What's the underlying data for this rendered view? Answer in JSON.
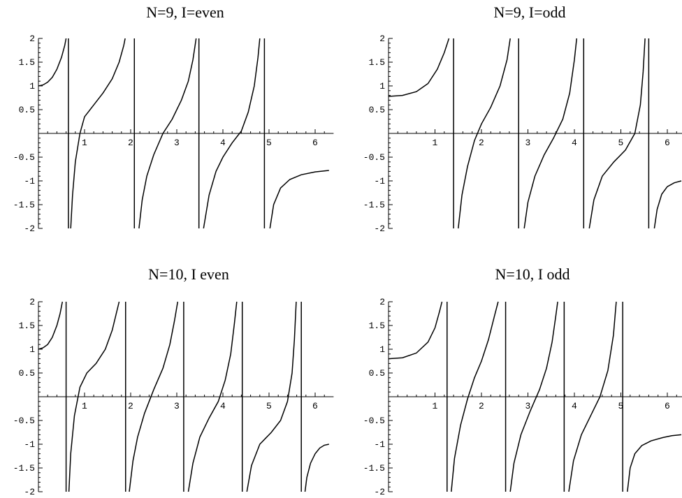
{
  "chart_data": [
    {
      "type": "line",
      "title": "N=9, I=even",
      "xlim": [
        0,
        6.4
      ],
      "ylim": [
        -2,
        2
      ],
      "x_ticks": [
        "1",
        "2",
        "3",
        "4",
        "5",
        "6"
      ],
      "x_tick_values": [
        1,
        2,
        3,
        4,
        5,
        6
      ],
      "y_ticks": [
        "2",
        "1.5",
        "1",
        "0.5",
        "-0.5",
        "-1",
        "-1.5",
        "-2"
      ],
      "y_tick_values": [
        2,
        1.5,
        1,
        0.5,
        -0.5,
        -1,
        -1.5,
        -2
      ],
      "grid": false,
      "asymptotes": [
        0.65,
        2.08,
        3.48,
        4.9
      ],
      "series": [
        {
          "x": [
            0,
            0.1,
            0.2,
            0.3,
            0.4,
            0.5,
            0.57,
            0.6
          ],
          "y": [
            1.0,
            1.02,
            1.08,
            1.18,
            1.35,
            1.6,
            1.85,
            2.0
          ]
        },
        {
          "x": [
            0.7,
            0.74,
            0.8,
            0.9,
            1.0,
            1.2,
            1.4,
            1.6,
            1.75,
            1.85,
            1.88
          ],
          "y": [
            -2.0,
            -1.3,
            -0.6,
            0.0,
            0.35,
            0.6,
            0.85,
            1.15,
            1.5,
            1.85,
            2.0
          ]
        },
        {
          "x": [
            2.18,
            2.25,
            2.35,
            2.5,
            2.7,
            2.9,
            3.1,
            3.25,
            3.35,
            3.42
          ],
          "y": [
            -2.0,
            -1.4,
            -0.9,
            -0.45,
            0.0,
            0.3,
            0.7,
            1.1,
            1.55,
            2.0
          ]
        },
        {
          "x": [
            3.58,
            3.7,
            3.85,
            4.0,
            4.2,
            4.4,
            4.55,
            4.68,
            4.76,
            4.8
          ],
          "y": [
            -2.0,
            -1.3,
            -0.8,
            -0.5,
            -0.2,
            0.05,
            0.45,
            1.0,
            1.6,
            2.0
          ]
        },
        {
          "x": [
            5.02,
            5.1,
            5.25,
            5.45,
            5.7,
            6.0,
            6.3
          ],
          "y": [
            -2.0,
            -1.5,
            -1.15,
            -0.97,
            -0.87,
            -0.81,
            -0.78
          ]
        }
      ]
    },
    {
      "type": "line",
      "title": "N=9, I=odd",
      "xlim": [
        0,
        6.4
      ],
      "ylim": [
        -2,
        2
      ],
      "x_ticks": [
        "1",
        "2",
        "3",
        "4",
        "5",
        "6"
      ],
      "x_tick_values": [
        1,
        2,
        3,
        4,
        5,
        6
      ],
      "y_ticks": [
        "2",
        "1.5",
        "1",
        "0.5",
        "-0.5",
        "-1",
        "-1.5",
        "-2"
      ],
      "y_tick_values": [
        2,
        1.5,
        1,
        0.5,
        -0.5,
        -1,
        -1.5,
        -2
      ],
      "grid": false,
      "asymptotes": [
        1.4,
        2.8,
        4.2,
        5.6
      ],
      "series": [
        {
          "x": [
            0,
            0.3,
            0.6,
            0.85,
            1.05,
            1.2,
            1.3
          ],
          "y": [
            0.78,
            0.8,
            0.88,
            1.05,
            1.35,
            1.7,
            2.0
          ]
        },
        {
          "x": [
            1.5,
            1.58,
            1.7,
            1.85,
            2.0,
            2.2,
            2.4,
            2.55,
            2.62
          ],
          "y": [
            -2.0,
            -1.3,
            -0.7,
            -0.15,
            0.2,
            0.55,
            1.0,
            1.55,
            2.0
          ]
        },
        {
          "x": [
            2.92,
            3.0,
            3.15,
            3.35,
            3.55,
            3.75,
            3.9,
            4.0,
            4.05
          ],
          "y": [
            -2.0,
            -1.45,
            -0.9,
            -0.45,
            -0.1,
            0.3,
            0.85,
            1.55,
            2.0
          ]
        },
        {
          "x": [
            4.32,
            4.42,
            4.6,
            4.85,
            5.1,
            5.3,
            5.42,
            5.48,
            5.52
          ],
          "y": [
            -2.0,
            -1.4,
            -0.9,
            -0.6,
            -0.35,
            0.0,
            0.6,
            1.3,
            2.0
          ]
        },
        {
          "x": [
            5.72,
            5.78,
            5.88,
            6.0,
            6.15,
            6.3
          ],
          "y": [
            -2.0,
            -1.6,
            -1.28,
            -1.12,
            -1.04,
            -1.0
          ]
        }
      ]
    },
    {
      "type": "line",
      "title": "N=10, I even",
      "xlim": [
        0,
        6.4
      ],
      "ylim": [
        -2,
        2
      ],
      "x_ticks": [
        "1",
        "2",
        "3",
        "4",
        "5",
        "6"
      ],
      "x_tick_values": [
        1,
        2,
        3,
        4,
        5,
        6
      ],
      "y_ticks": [
        "2",
        "1.5",
        "1",
        "0.5",
        "-0.5",
        "-1",
        "-1.5",
        "-2"
      ],
      "y_tick_values": [
        2,
        1.5,
        1,
        0.5,
        -0.5,
        -1,
        -1.5,
        -2
      ],
      "grid": false,
      "asymptotes": [
        0.6,
        1.89,
        3.15,
        4.42,
        5.7
      ],
      "series": [
        {
          "x": [
            0,
            0.1,
            0.2,
            0.3,
            0.4,
            0.47,
            0.52
          ],
          "y": [
            1.0,
            1.03,
            1.1,
            1.25,
            1.5,
            1.75,
            2.0
          ]
        },
        {
          "x": [
            0.66,
            0.7,
            0.78,
            0.9,
            1.05,
            1.25,
            1.45,
            1.6,
            1.7,
            1.75
          ],
          "y": [
            -2.0,
            -1.2,
            -0.4,
            0.2,
            0.5,
            0.7,
            1.0,
            1.4,
            1.8,
            2.0
          ]
        },
        {
          "x": [
            1.97,
            2.05,
            2.15,
            2.3,
            2.5,
            2.7,
            2.85,
            2.95,
            3.02
          ],
          "y": [
            -2.0,
            -1.35,
            -0.85,
            -0.35,
            0.15,
            0.6,
            1.1,
            1.6,
            2.0
          ]
        },
        {
          "x": [
            3.25,
            3.35,
            3.5,
            3.7,
            3.9,
            4.05,
            4.17,
            4.25,
            4.3
          ],
          "y": [
            -2.0,
            -1.4,
            -0.85,
            -0.45,
            -0.1,
            0.35,
            0.9,
            1.55,
            2.0
          ]
        },
        {
          "x": [
            4.52,
            4.62,
            4.8,
            5.05,
            5.25,
            5.4,
            5.5,
            5.55,
            5.59
          ],
          "y": [
            -2.0,
            -1.45,
            -1.0,
            -0.75,
            -0.5,
            -0.1,
            0.5,
            1.2,
            2.0
          ]
        },
        {
          "x": [
            5.78,
            5.82,
            5.9,
            6.0,
            6.1,
            6.2,
            6.3
          ],
          "y": [
            -2.0,
            -1.7,
            -1.4,
            -1.2,
            -1.08,
            -1.02,
            -1.0
          ]
        }
      ]
    },
    {
      "type": "line",
      "title": "N=10, I odd",
      "xlim": [
        0,
        6.4
      ],
      "ylim": [
        -2,
        2
      ],
      "x_ticks": [
        "1",
        "2",
        "3",
        "4",
        "5",
        "6"
      ],
      "x_tick_values": [
        1,
        2,
        3,
        4,
        5,
        6
      ],
      "y_ticks": [
        "2",
        "1.5",
        "1",
        "0.5",
        "-0.5",
        "-1",
        "-1.5",
        "-2"
      ],
      "y_tick_values": [
        2,
        1.5,
        1,
        0.5,
        -0.5,
        -1,
        -1.5,
        -2
      ],
      "grid": false,
      "asymptotes": [
        1.26,
        2.52,
        3.78,
        5.04
      ],
      "series": [
        {
          "x": [
            0,
            0.3,
            0.6,
            0.85,
            1.0,
            1.1,
            1.15
          ],
          "y": [
            0.8,
            0.82,
            0.92,
            1.15,
            1.45,
            1.8,
            2.0
          ]
        },
        {
          "x": [
            1.35,
            1.42,
            1.55,
            1.7,
            1.85,
            2.0,
            2.15,
            2.28,
            2.36
          ],
          "y": [
            -2.0,
            -1.3,
            -0.6,
            -0.05,
            0.4,
            0.75,
            1.2,
            1.7,
            2.0
          ]
        },
        {
          "x": [
            2.62,
            2.7,
            2.85,
            3.05,
            3.25,
            3.4,
            3.52,
            3.6,
            3.64
          ],
          "y": [
            -2.0,
            -1.4,
            -0.8,
            -0.3,
            0.15,
            0.6,
            1.15,
            1.7,
            2.0
          ]
        },
        {
          "x": [
            3.88,
            3.98,
            4.15,
            4.35,
            4.55,
            4.72,
            4.84,
            4.9
          ],
          "y": [
            -2.0,
            -1.35,
            -0.8,
            -0.4,
            0.0,
            0.55,
            1.3,
            2.0
          ]
        },
        {
          "x": [
            5.14,
            5.2,
            5.3,
            5.45,
            5.65,
            5.9,
            6.1,
            6.3
          ],
          "y": [
            -2.0,
            -1.5,
            -1.2,
            -1.03,
            -0.93,
            -0.86,
            -0.82,
            -0.8
          ]
        }
      ]
    }
  ]
}
